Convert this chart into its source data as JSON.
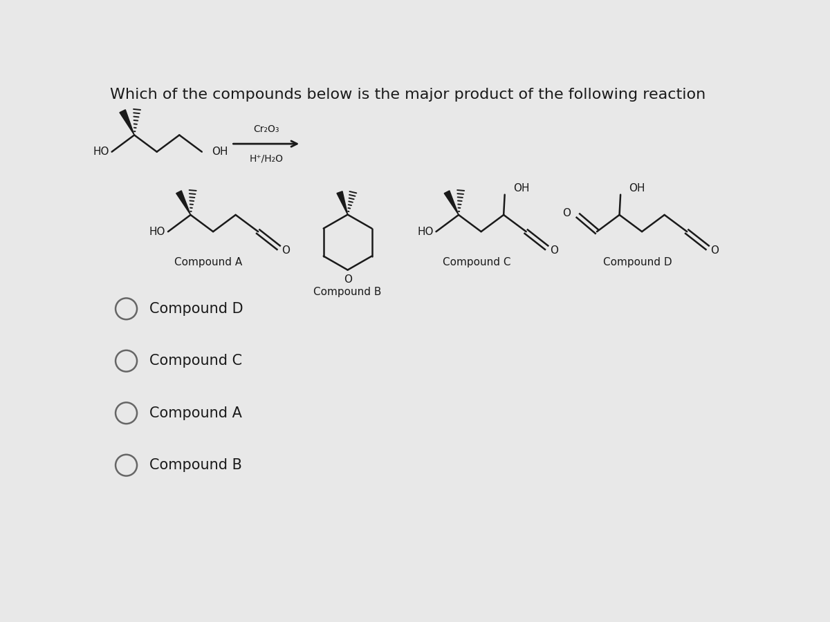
{
  "background_color": "#e8e8e8",
  "title": "Which of the compounds below is the major product of the following reaction",
  "title_fontsize": 16,
  "title_color": "#1a1a1a",
  "reagent_top": "Cr₂O₃",
  "reagent_bottom": "H⁺/H₂O",
  "compounds": [
    "Compound A",
    "Compound B",
    "Compound C",
    "Compound D"
  ],
  "choices": [
    "Compound D",
    "Compound C",
    "Compound A",
    "Compound B"
  ],
  "line_color": "#1a1a1a",
  "line_width": 1.8
}
